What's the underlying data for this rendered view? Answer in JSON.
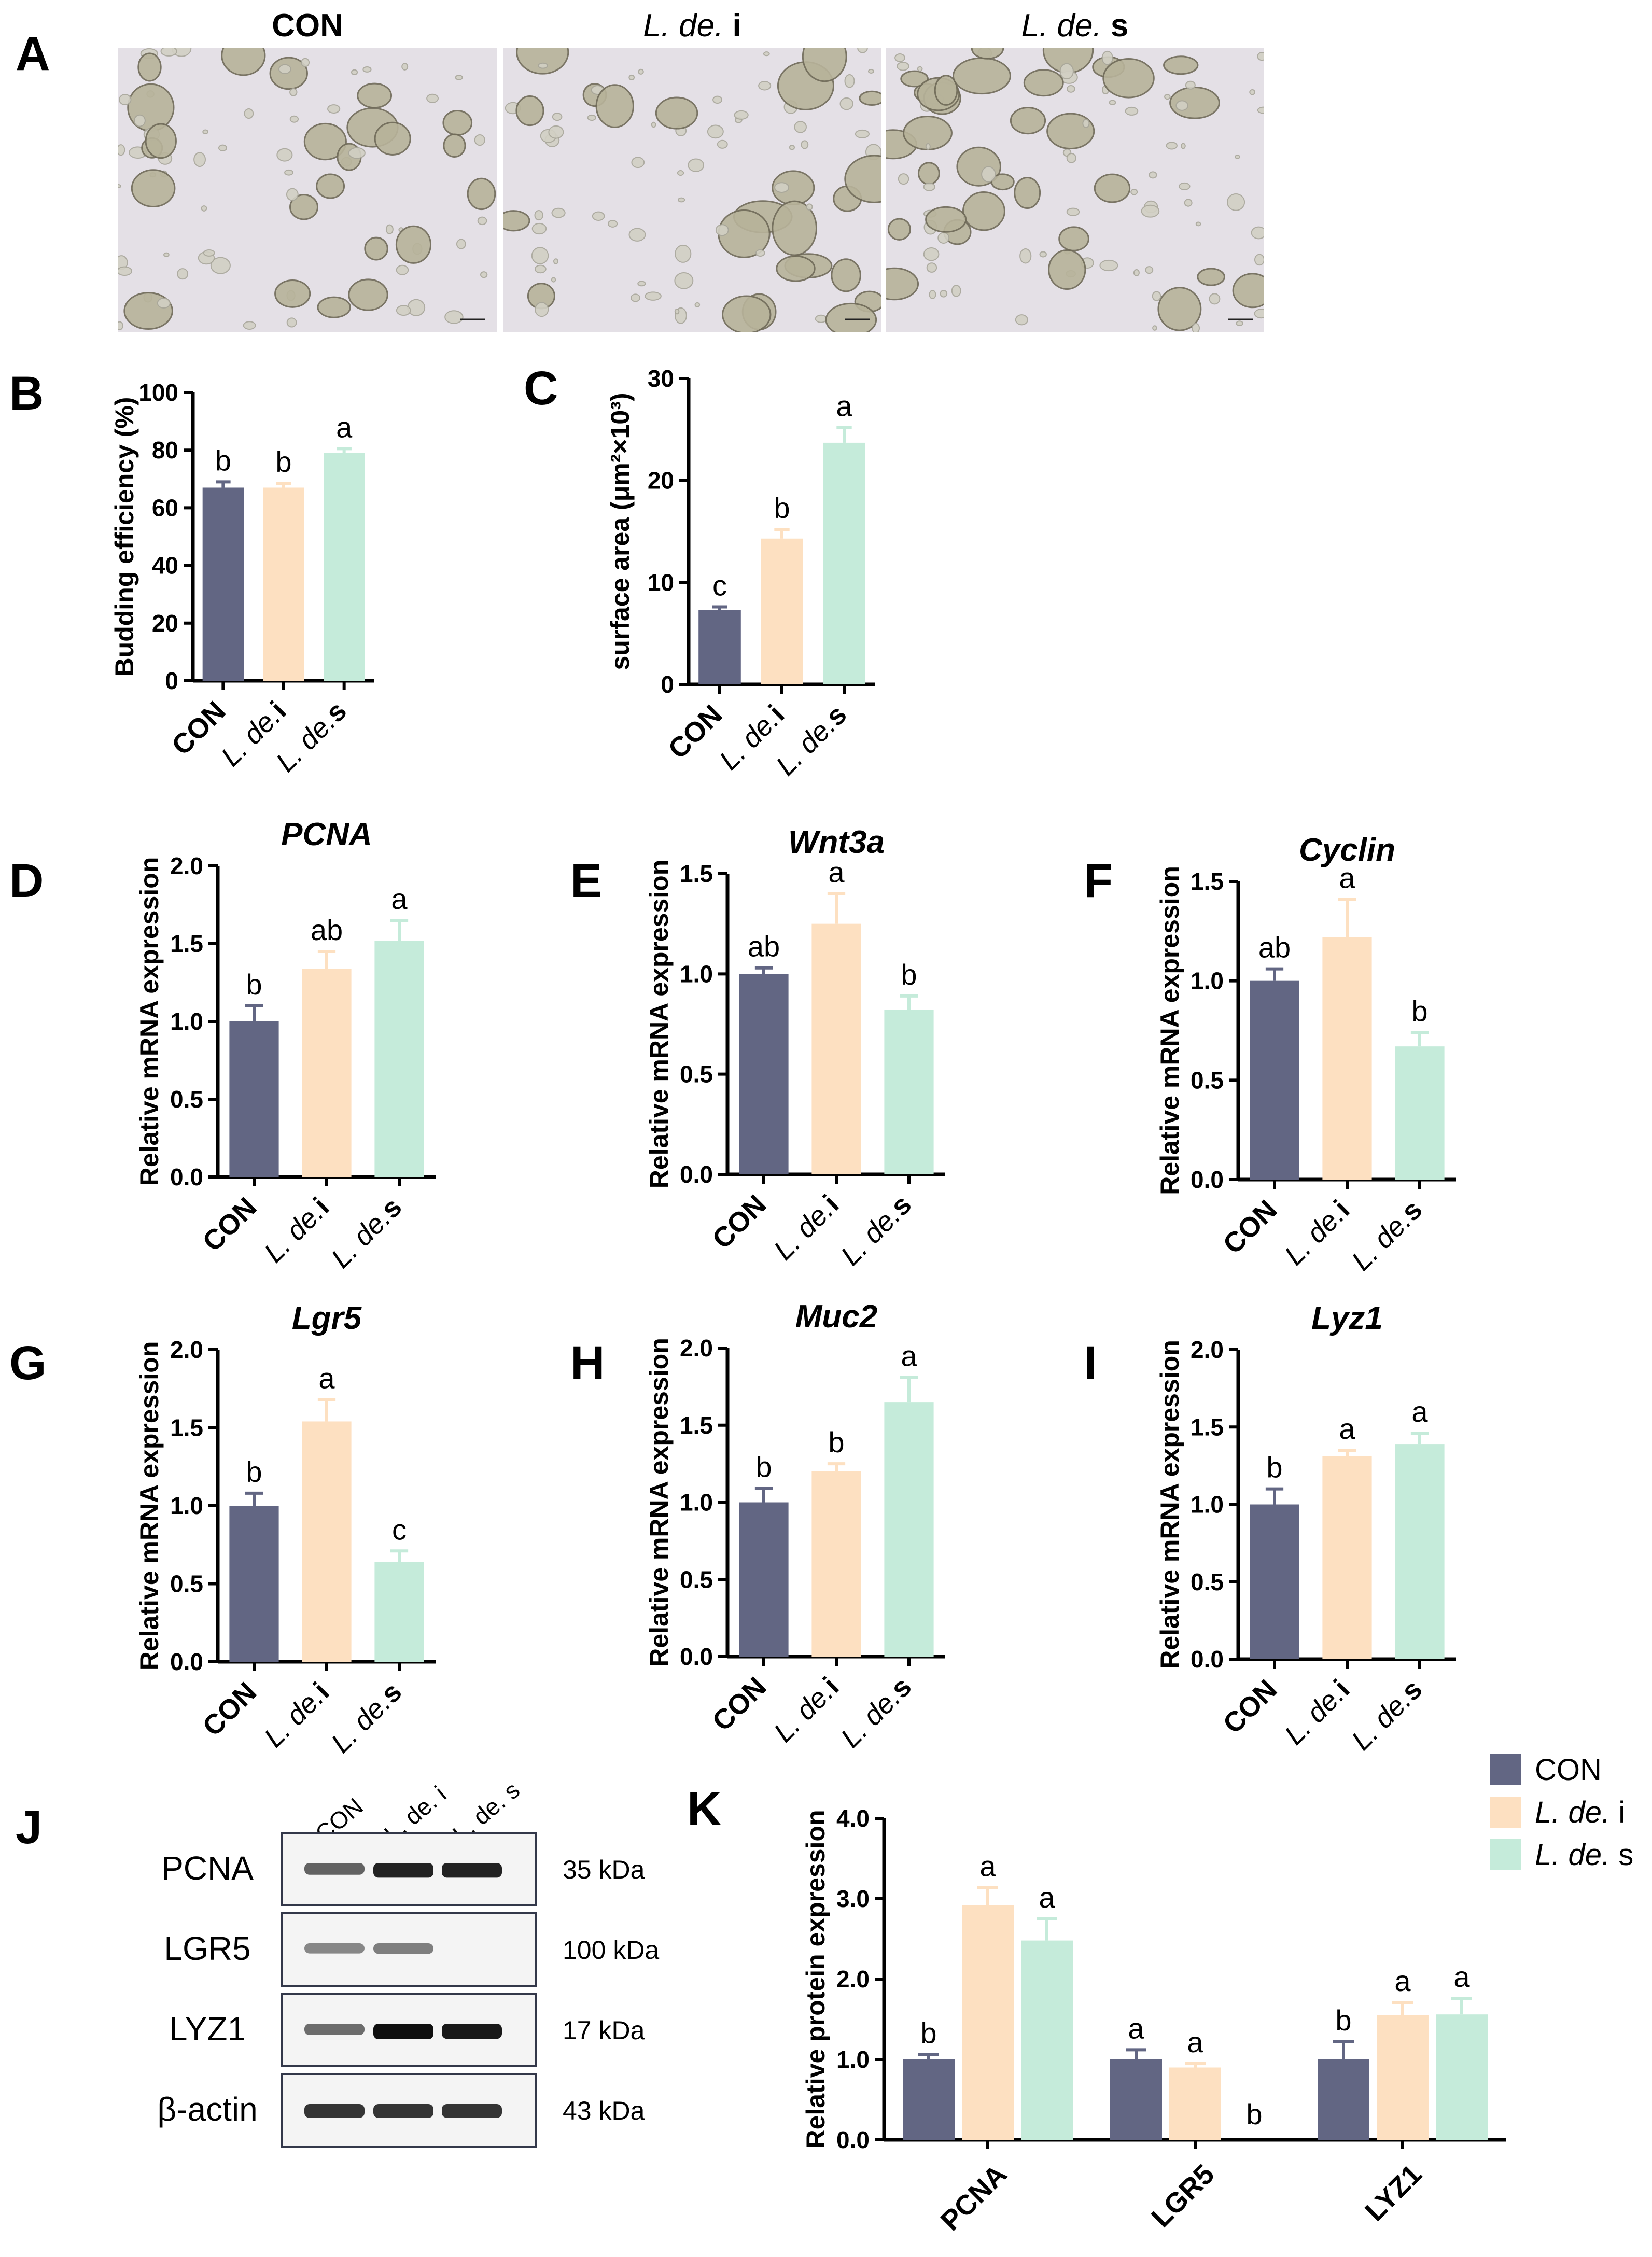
{
  "colors": {
    "CON": "#626683",
    "L. de. i": "#fde0c1",
    "L. de. s": "#c5ebda"
  },
  "panel_letters": [
    "A",
    "B",
    "C",
    "D",
    "E",
    "F",
    "G",
    "H",
    "I",
    "J",
    "K"
  ],
  "microscopy": {
    "panel": "A",
    "titles": [
      {
        "italic": "",
        "plain": "CON"
      },
      {
        "italic": "L. de.",
        "plain": " i"
      },
      {
        "italic": "L. de.",
        "plain": " s"
      }
    ]
  },
  "western_blot": {
    "panel": "J",
    "lanes": [
      "CON",
      "L. de. i",
      "L. de. s"
    ],
    "rows": [
      {
        "name": "PCNA",
        "kda": "35 kDa",
        "intensity": [
          0.55,
          0.9,
          0.9
        ]
      },
      {
        "name": "LGR5",
        "kda": "100 kDa",
        "intensity": [
          0.35,
          0.4,
          0.0
        ]
      },
      {
        "name": "LYZ1",
        "kda": "17 kDa",
        "intensity": [
          0.5,
          1.0,
          0.95
        ]
      },
      {
        "name": "β-actin",
        "kda": "43 kDa",
        "intensity": [
          0.8,
          0.8,
          0.8
        ]
      }
    ]
  },
  "chart_data": [
    {
      "panel": "B",
      "type": "bar",
      "title": "",
      "ylabel": "Budding efficiency (%)",
      "ylim": [
        0,
        100
      ],
      "yticks": [
        "0",
        "20",
        "40",
        "60",
        "80",
        "100"
      ],
      "categories": [
        {
          "italic": "",
          "plain": "CON"
        },
        {
          "italic": "L. de.",
          "plain": "i"
        },
        {
          "italic": "L. de.",
          "plain": "s"
        }
      ],
      "values": [
        67,
        67,
        79
      ],
      "errors": [
        2,
        1.5,
        1.5
      ],
      "sig": [
        "b",
        "b",
        "a"
      ]
    },
    {
      "panel": "C",
      "type": "bar",
      "title": "",
      "ylabel": "surface area (μm²×10³)",
      "ylim": [
        0,
        30
      ],
      "yticks": [
        "0",
        "10",
        "20",
        "30"
      ],
      "categories": [
        {
          "italic": "",
          "plain": "CON"
        },
        {
          "italic": "L. de.",
          "plain": "i"
        },
        {
          "italic": "L. de.",
          "plain": "s"
        }
      ],
      "values": [
        7.3,
        14.3,
        23.7
      ],
      "errors": [
        0.3,
        0.9,
        1.5
      ],
      "sig": [
        "c",
        "b",
        "a"
      ]
    },
    {
      "panel": "D",
      "type": "bar",
      "title": "PCNA",
      "ylabel": "Relative mRNA expression",
      "ylim": [
        0,
        2.0
      ],
      "yticks": [
        "0.0",
        "0.5",
        "1.0",
        "1.5",
        "2.0"
      ],
      "categories": [
        {
          "italic": "",
          "plain": "CON"
        },
        {
          "italic": "L. de.",
          "plain": "i"
        },
        {
          "italic": "L. de.",
          "plain": "s"
        }
      ],
      "values": [
        1.0,
        1.34,
        1.52
      ],
      "errors": [
        0.1,
        0.11,
        0.13
      ],
      "sig": [
        "b",
        "ab",
        "a"
      ]
    },
    {
      "panel": "E",
      "type": "bar",
      "title": "Wnt3a",
      "ylabel": "Relative mRNA expression",
      "ylim": [
        0,
        1.5
      ],
      "yticks": [
        "0.0",
        "0.5",
        "1.0",
        "1.5"
      ],
      "categories": [
        {
          "italic": "",
          "plain": "CON"
        },
        {
          "italic": "L. de.",
          "plain": "i"
        },
        {
          "italic": "L. de.",
          "plain": "s"
        }
      ],
      "values": [
        1.0,
        1.25,
        0.82
      ],
      "errors": [
        0.03,
        0.15,
        0.07
      ],
      "sig": [
        "ab",
        "a",
        "b"
      ]
    },
    {
      "panel": "F",
      "type": "bar",
      "title": "Cyclin",
      "ylabel": "Relative mRNA expression",
      "ylim": [
        0,
        1.5
      ],
      "yticks": [
        "0.0",
        "0.5",
        "1.0",
        "1.5"
      ],
      "categories": [
        {
          "italic": "",
          "plain": "CON"
        },
        {
          "italic": "L. de.",
          "plain": "i"
        },
        {
          "italic": "L. de.",
          "plain": "s"
        }
      ],
      "values": [
        1.0,
        1.22,
        0.67
      ],
      "errors": [
        0.06,
        0.19,
        0.07
      ],
      "sig": [
        "ab",
        "a",
        "b"
      ]
    },
    {
      "panel": "G",
      "type": "bar",
      "title": "Lgr5",
      "ylabel": "Relative mRNA expression",
      "ylim": [
        0,
        2.0
      ],
      "yticks": [
        "0.0",
        "0.5",
        "1.0",
        "1.5",
        "2.0"
      ],
      "categories": [
        {
          "italic": "",
          "plain": "CON"
        },
        {
          "italic": "L. de.",
          "plain": "i"
        },
        {
          "italic": "L. de.",
          "plain": "s"
        }
      ],
      "values": [
        1.0,
        1.54,
        0.64
      ],
      "errors": [
        0.08,
        0.14,
        0.07
      ],
      "sig": [
        "b",
        "a",
        "c"
      ]
    },
    {
      "panel": "H",
      "type": "bar",
      "title": "Muc2",
      "ylabel": "Relative mRNA expression",
      "ylim": [
        0,
        2.0
      ],
      "yticks": [
        "0.0",
        "0.5",
        "1.0",
        "1.5",
        "2.0"
      ],
      "categories": [
        {
          "italic": "",
          "plain": "CON"
        },
        {
          "italic": "L. de.",
          "plain": "i"
        },
        {
          "italic": "L. de.",
          "plain": "s"
        }
      ],
      "values": [
        1.0,
        1.2,
        1.65
      ],
      "errors": [
        0.09,
        0.05,
        0.16
      ],
      "sig": [
        "b",
        "b",
        "a"
      ]
    },
    {
      "panel": "I",
      "type": "bar",
      "title": "Lyz1",
      "ylabel": "Relative mRNA expression",
      "ylim": [
        0,
        2.0
      ],
      "yticks": [
        "0.0",
        "0.5",
        "1.0",
        "1.5",
        "2.0"
      ],
      "categories": [
        {
          "italic": "",
          "plain": "CON"
        },
        {
          "italic": "L. de.",
          "plain": "i"
        },
        {
          "italic": "L. de.",
          "plain": "s"
        }
      ],
      "values": [
        1.0,
        1.31,
        1.39
      ],
      "errors": [
        0.1,
        0.04,
        0.07
      ],
      "sig": [
        "b",
        "a",
        "a"
      ]
    },
    {
      "panel": "K",
      "type": "bar",
      "title": "",
      "ylabel": "Relative protein expression",
      "ylim": [
        0,
        4.0
      ],
      "yticks": [
        "0.0",
        "1.0",
        "2.0",
        "3.0",
        "4.0"
      ],
      "categories": [
        "PCNA",
        "LGR5",
        "LYZ1"
      ],
      "series": [
        {
          "name": "CON",
          "values": [
            1.0,
            1.0,
            1.0
          ],
          "errors": [
            0.06,
            0.12,
            0.22
          ],
          "sig": [
            "b",
            "a",
            "b"
          ]
        },
        {
          "name": "L. de. i",
          "values": [
            2.92,
            0.9,
            1.55
          ],
          "errors": [
            0.22,
            0.05,
            0.16
          ],
          "sig": [
            "a",
            "a",
            "a"
          ]
        },
        {
          "name": "L. de. s",
          "values": [
            2.48,
            0.0,
            1.56
          ],
          "errors": [
            0.27,
            0.0,
            0.2
          ],
          "sig": [
            "a",
            "b",
            "a"
          ]
        }
      ],
      "legend": [
        {
          "italic": "",
          "plain": "CON"
        },
        {
          "italic": "L. de.",
          "plain": " i"
        },
        {
          "italic": "L. de.",
          "plain": " s"
        }
      ]
    }
  ]
}
